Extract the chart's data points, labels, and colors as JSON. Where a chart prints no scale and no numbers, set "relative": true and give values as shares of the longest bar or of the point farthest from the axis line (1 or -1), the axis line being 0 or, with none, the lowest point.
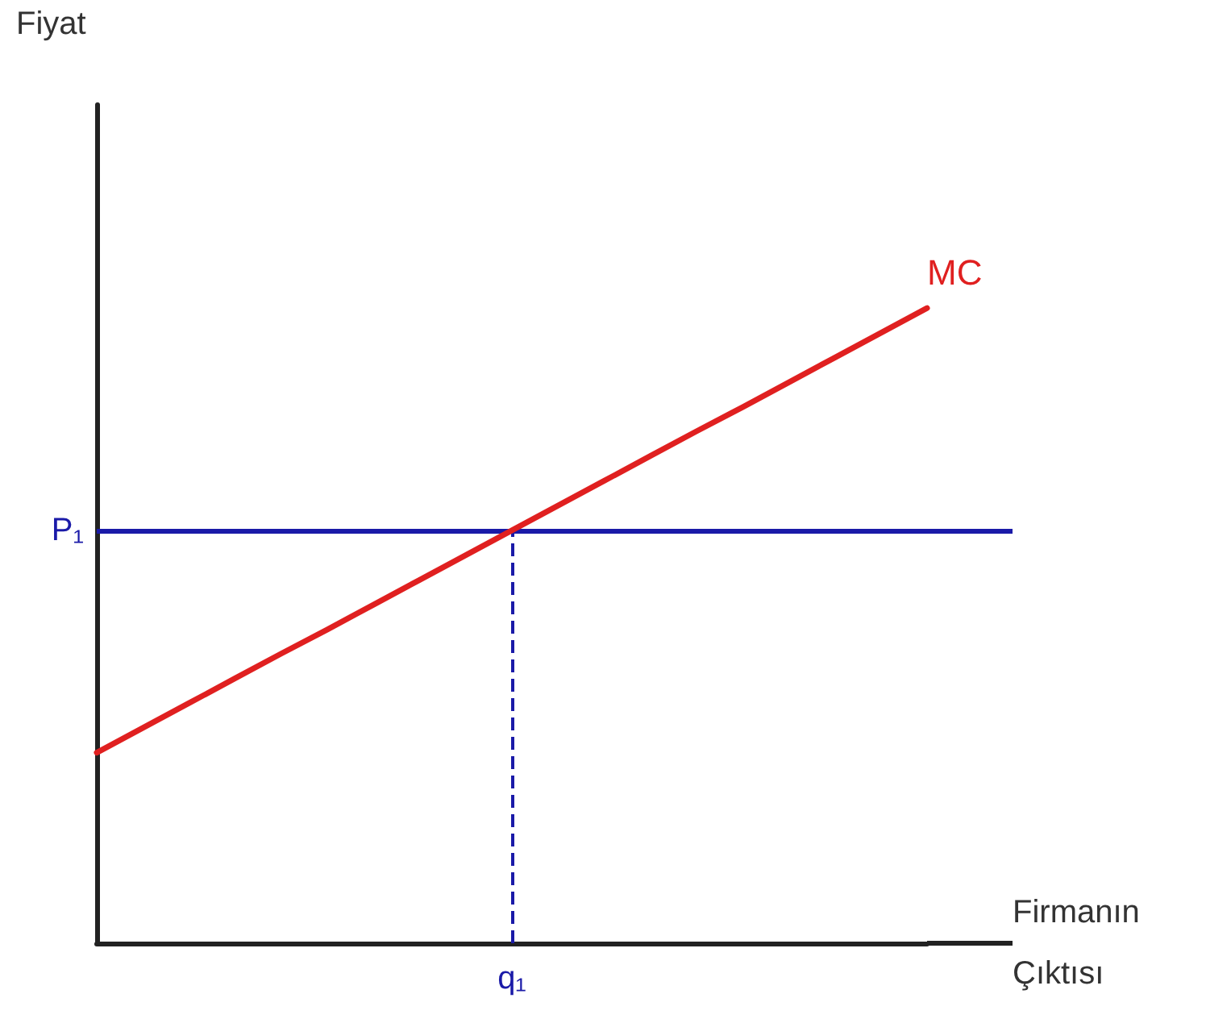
{
  "chart_data": {
    "type": "line",
    "relative": true,
    "xlabel": "Firmanın Çıktısı",
    "categories": [
      null,
      null,
      null,
      null,
      null,
      null,
      null,
      null,
      null,
      null,
      null,
      null,
      null,
      null,
      null,
      null,
      null,
      null,
      null
    ],
    "series": [
      {
        "name": "MC",
        "color": "#e02020",
        "values": [
          0.3,
          0.339,
          0.378,
          0.417,
          0.456,
          0.494,
          0.533,
          0.572,
          0.611,
          0.65,
          0.689,
          0.728,
          0.767,
          0.806,
          0.844,
          0.883,
          0.922,
          0.961,
          1.0
        ]
      }
    ],
    "ref_lines": [
      {
        "axis": "y",
        "value": 0.65,
        "label": "P₁",
        "color": "#1a1aa8",
        "line_style": "solid"
      }
    ],
    "annotations": [
      "Fiyat",
      "q₁"
    ],
    "grid": false,
    "legend": false,
    "marker": "none",
    "line_style": "solid"
  }
}
